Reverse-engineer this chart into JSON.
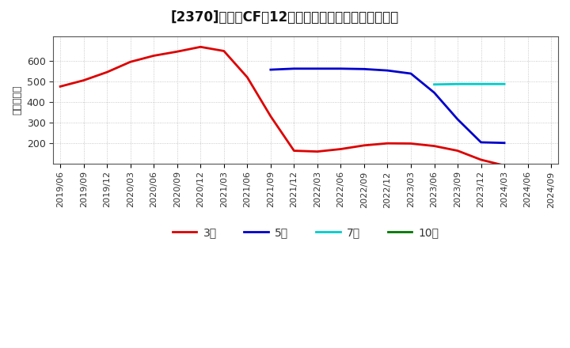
{
  "title": "[2370]　営業CFの12か月移動合計の標準偏差の推移",
  "ylabel": "（百万円）",
  "background_color": "#ffffff",
  "grid_color": "#bbbbbb",
  "plot_bg_color": "#ffffff",
  "series": {
    "3年": {
      "color": "#dd0000",
      "dates": [
        "2019/06",
        "2019/09",
        "2019/12",
        "2020/03",
        "2020/06",
        "2020/09",
        "2020/12",
        "2021/03",
        "2021/06",
        "2021/09",
        "2021/12",
        "2022/03",
        "2022/06",
        "2022/09",
        "2022/12",
        "2023/03",
        "2023/06",
        "2023/09",
        "2023/12",
        "2024/03"
      ],
      "values": [
        475,
        505,
        545,
        595,
        625,
        645,
        668,
        648,
        520,
        330,
        162,
        158,
        170,
        188,
        198,
        197,
        185,
        162,
        118,
        90
      ]
    },
    "5年": {
      "color": "#0000cc",
      "dates": [
        "2021/09",
        "2021/12",
        "2022/03",
        "2022/06",
        "2022/09",
        "2022/12",
        "2023/03",
        "2023/06",
        "2023/09",
        "2023/12",
        "2024/03"
      ],
      "values": [
        557,
        562,
        562,
        562,
        560,
        553,
        538,
        445,
        315,
        203,
        200
      ]
    },
    "7年": {
      "color": "#00cccc",
      "dates": [
        "2023/06",
        "2023/09",
        "2023/12",
        "2024/03"
      ],
      "values": [
        485,
        487,
        487,
        487
      ]
    },
    "10年": {
      "color": "#007700",
      "dates": [],
      "values": []
    }
  },
  "xticks": [
    "2019/06",
    "2019/09",
    "2019/12",
    "2020/03",
    "2020/06",
    "2020/09",
    "2020/12",
    "2021/03",
    "2021/06",
    "2021/09",
    "2021/12",
    "2022/03",
    "2022/06",
    "2022/09",
    "2022/12",
    "2023/03",
    "2023/06",
    "2023/09",
    "2023/12",
    "2024/03",
    "2024/06",
    "2024/09"
  ],
  "ylim": [
    100,
    720
  ],
  "yticks": [
    200,
    300,
    400,
    500,
    600
  ],
  "linewidth": 2.0,
  "title_fontsize": 12,
  "tick_fontsize": 8,
  "ylabel_fontsize": 9
}
